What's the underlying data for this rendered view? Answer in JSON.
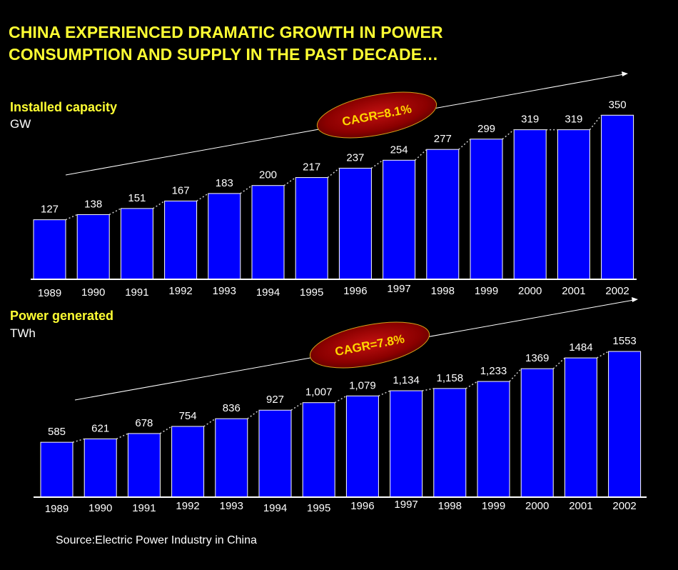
{
  "title": {
    "line1": "CHINA EXPERIENCED DRAMATIC GROWTH IN POWER",
    "line2": "CONSUMPTION AND SUPPLY IN THE PAST DECADE…"
  },
  "source": "Source:Electric Power Industry in China",
  "colors": {
    "background": "#000000",
    "title": "#ffff33",
    "bar": "#0000ff",
    "bar_edge": "#ffffff",
    "text": "#ffffff",
    "cagr_text": "#ffd700",
    "cagr_fill": "#8b0000"
  },
  "chart_data": [
    {
      "type": "bar",
      "title": "Installed capacity",
      "unit": "GW",
      "categories": [
        "1989",
        "1990",
        "1991",
        "1992",
        "1993",
        "1994",
        "1995",
        "1996",
        "1997",
        "1998",
        "1999",
        "2000",
        "2001",
        "2002"
      ],
      "values": [
        127,
        138,
        151,
        167,
        183,
        200,
        217,
        237,
        254,
        277,
        299,
        319,
        319,
        350
      ],
      "labels": [
        "127",
        "138",
        "151",
        "167",
        "183",
        "200",
        "217",
        "237",
        "254",
        "277",
        "299",
        "319",
        "319",
        "350"
      ],
      "cagr": "CAGR=8.1%",
      "xlabel": "",
      "ylabel": "GW",
      "ylim": [
        0,
        355
      ],
      "grid": false,
      "legend": "none"
    },
    {
      "type": "bar",
      "title": "Power generated",
      "unit": "TWh",
      "categories": [
        "1989",
        "1990",
        "1991",
        "1992",
        "1993",
        "1994",
        "1995",
        "1996",
        "1997",
        "1998",
        "1999",
        "2000",
        "2001",
        "2002"
      ],
      "values": [
        585,
        621,
        678,
        754,
        836,
        927,
        1007,
        1079,
        1134,
        1158,
        1233,
        1369,
        1484,
        1553
      ],
      "labels": [
        "585",
        "621",
        "678",
        "754",
        "836",
        "927",
        "1,007",
        "1,079",
        "1,134",
        "1,158",
        "1,233",
        "1369",
        "1484",
        "1553"
      ],
      "cagr": "CAGR=7.8%",
      "xlabel": "",
      "ylabel": "TWh",
      "ylim": [
        0,
        1553
      ],
      "grid": false,
      "legend": "none"
    }
  ]
}
